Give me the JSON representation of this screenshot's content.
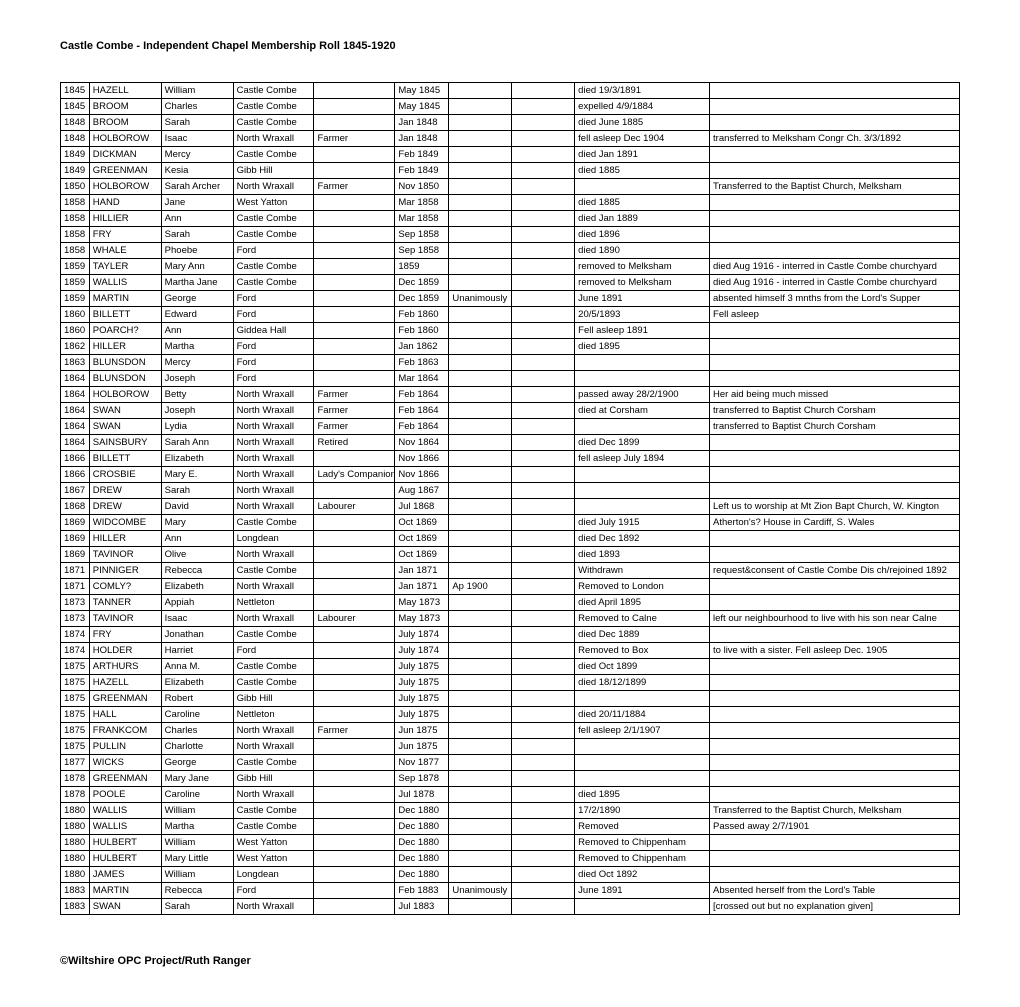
{
  "title": "Castle Combe - Independent Chapel Membership Roll 1845-1920",
  "footer": "©Wiltshire OPC Project/Ruth Ranger",
  "rows": [
    [
      "1845",
      "HAZELL",
      "William",
      "Castle Combe",
      "",
      "May 1845",
      "",
      "",
      "died 19/3/1891",
      ""
    ],
    [
      "1845",
      "BROOM",
      "Charles",
      "Castle Combe",
      "",
      "May 1845",
      "",
      "",
      "expelled 4/9/1884",
      ""
    ],
    [
      "1848",
      "BROOM",
      "Sarah",
      "Castle Combe",
      "",
      "Jan 1848",
      "",
      "",
      "died June 1885",
      ""
    ],
    [
      "1848",
      "HOLBOROW",
      "Isaac",
      "North Wraxall",
      "Farmer",
      "Jan 1848",
      "",
      "",
      "fell asleep Dec 1904",
      "transferred to Melksham Congr Ch. 3/3/1892"
    ],
    [
      "1849",
      "DICKMAN",
      "Mercy",
      "Castle Combe",
      "",
      "Feb 1849",
      "",
      "",
      "died Jan 1891",
      ""
    ],
    [
      "1849",
      "GREENMAN",
      "Kesia",
      "Gibb Hill",
      "",
      "Feb 1849",
      "",
      "",
      "died 1885",
      ""
    ],
    [
      "1850",
      "HOLBOROW",
      "Sarah Archer",
      "North Wraxall",
      "Farmer",
      "Nov 1850",
      "",
      "",
      "",
      "Transferred to the Baptist Church, Melksham"
    ],
    [
      "1858",
      "HAND",
      "Jane",
      "West Yatton",
      "",
      "Mar 1858",
      "",
      "",
      "died 1885",
      ""
    ],
    [
      "1858",
      "HILLIER",
      "Ann",
      "Castle Combe",
      "",
      "Mar 1858",
      "",
      "",
      "died Jan 1889",
      ""
    ],
    [
      "1858",
      "FRY",
      "Sarah",
      "Castle Combe",
      "",
      "Sep 1858",
      "",
      "",
      "died 1896",
      ""
    ],
    [
      "1858",
      "WHALE",
      "Phoebe",
      "Ford",
      "",
      "Sep 1858",
      "",
      "",
      "died 1890",
      ""
    ],
    [
      "1859",
      "TAYLER",
      "Mary Ann",
      "Castle Combe",
      "",
      "1859",
      "",
      "",
      "removed to Melksham",
      "died Aug 1916 - interred in Castle Combe churchyard"
    ],
    [
      "1859",
      "WALLIS",
      "Martha Jane",
      "Castle Combe",
      "",
      "Dec 1859",
      "",
      "",
      "removed to Melksham",
      "died Aug 1916 - interred in Castle Combe churchyard"
    ],
    [
      "1859",
      "MARTIN",
      "George",
      "Ford",
      "",
      "Dec 1859",
      "Unanimously",
      "",
      "June 1891",
      "absented himself 3 mnths from the Lord's Supper"
    ],
    [
      "1860",
      "BILLETT",
      "Edward",
      "Ford",
      "",
      "Feb 1860",
      "",
      "",
      "20/5/1893",
      "Fell asleep"
    ],
    [
      "1860",
      "POARCH?",
      "Ann",
      "Giddea Hall",
      "",
      "Feb 1860",
      "",
      "",
      "Fell asleep 1891",
      ""
    ],
    [
      "1862",
      "HILLER",
      "Martha",
      "Ford",
      "",
      "Jan 1862",
      "",
      "",
      "died 1895",
      ""
    ],
    [
      "1863",
      "BLUNSDON",
      "Mercy",
      "Ford",
      "",
      "Feb 1863",
      "",
      "",
      "",
      ""
    ],
    [
      "1864",
      "BLUNSDON",
      "Joseph",
      "Ford",
      "",
      "Mar 1864",
      "",
      "",
      "",
      ""
    ],
    [
      "1864",
      "HOLBOROW",
      "Betty",
      "North Wraxall",
      "Farmer",
      "Feb 1864",
      "",
      "",
      "passed away 28/2/1900",
      "Her aid being much missed"
    ],
    [
      "1864",
      "SWAN",
      "Joseph",
      "North Wraxall",
      "Farmer",
      "Feb 1864",
      "",
      "",
      "died at Corsham",
      "transferred to Baptist Church Corsham"
    ],
    [
      "1864",
      "SWAN",
      "Lydia",
      "North Wraxall",
      "Farmer",
      "Feb 1864",
      "",
      "",
      "",
      "transferred to Baptist Church Corsham"
    ],
    [
      "1864",
      "SAINSBURY",
      "Sarah Ann",
      "North Wraxall",
      "Retired",
      "Nov 1864",
      "",
      "",
      "died Dec 1899",
      ""
    ],
    [
      "1866",
      "BILLETT",
      "Elizabeth",
      "North Wraxall",
      "",
      "Nov 1866",
      "",
      "",
      "fell asleep July 1894",
      ""
    ],
    [
      "1866",
      "CROSBIE",
      "Mary E.",
      "North Wraxall",
      "Lady's Companion",
      "Nov 1866",
      "",
      "",
      "",
      ""
    ],
    [
      "1867",
      "DREW",
      "Sarah",
      "North Wraxall",
      "",
      "Aug 1867",
      "",
      "",
      "",
      ""
    ],
    [
      "1868",
      "DREW",
      "David",
      "North Wraxall",
      "Labourer",
      "Jul 1868",
      "",
      "",
      "",
      "Left us to worship at Mt Zion Bapt Church, W. Kington"
    ],
    [
      "1869",
      "WIDCOMBE",
      "Mary",
      "Castle Combe",
      "",
      "Oct 1869",
      "",
      "",
      "died July 1915",
      "Atherton's? House in Cardiff, S. Wales"
    ],
    [
      "1869",
      "HILLER",
      "Ann",
      "Longdean",
      "",
      "Oct 1869",
      "",
      "",
      "died Dec 1892",
      ""
    ],
    [
      "1869",
      "TAVINOR",
      "Olive",
      "North Wraxall",
      "",
      "Oct 1869",
      "",
      "",
      "died 1893",
      ""
    ],
    [
      "1871",
      "PINNIGER",
      "Rebecca",
      "Castle Combe",
      "",
      "Jan 1871",
      "",
      "",
      "Withdrawn",
      "request&consent of Castle Combe Dis ch/rejoined 1892"
    ],
    [
      "1871",
      "COMLY?",
      "Elizabeth",
      "North Wraxall",
      "",
      "Jan 1871",
      "Ap 1900",
      "",
      "Removed to London",
      ""
    ],
    [
      "1873",
      "TANNER",
      "Appiah",
      "Nettleton",
      "",
      "May 1873",
      "",
      "",
      "died April 1895",
      ""
    ],
    [
      "1873",
      "TAVINOR",
      "Isaac",
      "North Wraxall",
      "Labourer",
      "May 1873",
      "",
      "",
      "Removed to Calne",
      "left our neighbourhood to live with his son near Calne"
    ],
    [
      "1874",
      "FRY",
      "Jonathan",
      "Castle Combe",
      "",
      "July 1874",
      "",
      "",
      "died Dec 1889",
      ""
    ],
    [
      "1874",
      "HOLDER",
      "Harriet",
      "Ford",
      "",
      "July 1874",
      "",
      "",
      "Removed to Box",
      "to live with a sister.  Fell asleep Dec. 1905"
    ],
    [
      "1875",
      "ARTHURS",
      "Anna M.",
      "Castle Combe",
      "",
      "July 1875",
      "",
      "",
      "died Oct 1899",
      ""
    ],
    [
      "1875",
      "HAZELL",
      "Elizabeth",
      "Castle Combe",
      "",
      "July 1875",
      "",
      "",
      "died 18/12/1899",
      ""
    ],
    [
      "1875",
      "GREENMAN",
      "Robert",
      "Gibb Hill",
      "",
      "July 1875",
      "",
      "",
      "",
      ""
    ],
    [
      "1875",
      "HALL",
      "Caroline",
      "Nettleton",
      "",
      "July 1875",
      "",
      "",
      "died 20/11/1884",
      ""
    ],
    [
      "1875",
      "FRANKCOM",
      "Charles",
      "North Wraxall",
      "Farmer",
      "Jun 1875",
      "",
      "",
      "fell asleep 2/1/1907",
      ""
    ],
    [
      "1875",
      "PULLIN",
      "Charlotte",
      "North Wraxall",
      "",
      "Jun 1875",
      "",
      "",
      "",
      ""
    ],
    [
      "1877",
      "WICKS",
      "George",
      "Castle Combe",
      "",
      "Nov 1877",
      "",
      "",
      "",
      ""
    ],
    [
      "1878",
      "GREENMAN",
      "Mary Jane",
      "Gibb Hill",
      "",
      "Sep 1878",
      "",
      "",
      "",
      ""
    ],
    [
      "1878",
      "POOLE",
      "Caroline",
      "North Wraxall",
      "",
      "Jul 1878",
      "",
      "",
      "died 1895",
      ""
    ],
    [
      "1880",
      "WALLIS",
      "William",
      "Castle Combe",
      "",
      "Dec 1880",
      "",
      "",
      "17/2/1890",
      "Transferred to the Baptist Church, Melksham"
    ],
    [
      "1880",
      "WALLIS",
      "Martha",
      "Castle Combe",
      "",
      "Dec 1880",
      "",
      "",
      "Removed",
      "Passed away 2/7/1901"
    ],
    [
      "1880",
      "HULBERT",
      "William",
      "West Yatton",
      "",
      "Dec 1880",
      "",
      "",
      "Removed to Chippenham",
      ""
    ],
    [
      "1880",
      "HULBERT",
      "Mary Little",
      "West Yatton",
      "",
      "Dec 1880",
      "",
      "",
      "Removed to Chippenham",
      ""
    ],
    [
      "1880",
      "JAMES",
      "William",
      "Longdean",
      "",
      "Dec 1880",
      "",
      "",
      "died Oct 1892",
      ""
    ],
    [
      "1883",
      "MARTIN",
      "Rebecca",
      "Ford",
      "",
      "Feb 1883",
      "Unanimously",
      "",
      "June 1891",
      "Absented herself from the Lord's Table"
    ],
    [
      "1883",
      "SWAN",
      "Sarah",
      "North Wraxall",
      "",
      "Jul 1883",
      "",
      "",
      "",
      "[crossed out but no explanation given]"
    ]
  ]
}
